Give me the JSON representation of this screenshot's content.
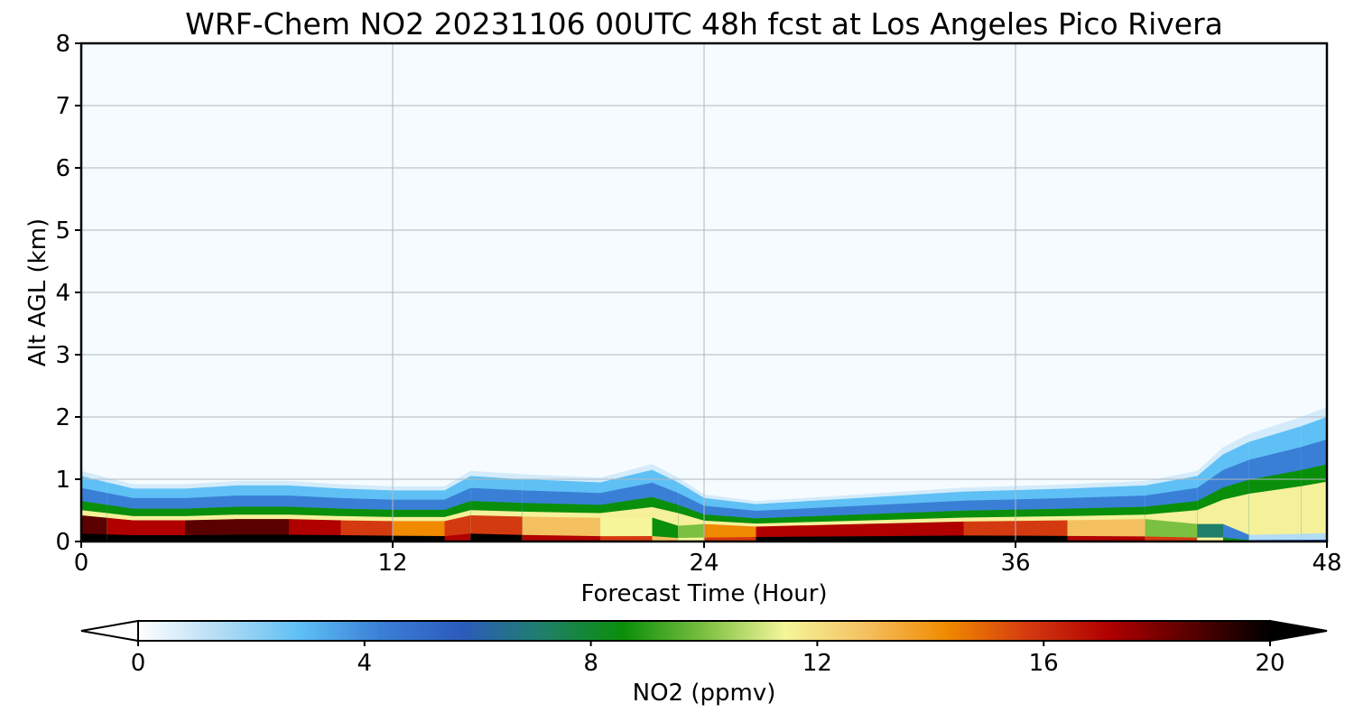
{
  "chart_data": {
    "type": "heatmap",
    "title": "WRF-Chem NO2  20231106 00UTC 48h fcst at Los Angeles Pico Rivera",
    "xlabel": "Forecast Time (Hour)",
    "ylabel": "Alt AGL (km)",
    "xlim": [
      0,
      48
    ],
    "ylim": [
      0,
      8
    ],
    "x_ticks": [
      "0",
      "12",
      "24",
      "36",
      "48"
    ],
    "y_ticks": [
      "0",
      "1",
      "2",
      "3",
      "4",
      "5",
      "6",
      "7",
      "8"
    ],
    "grid": true,
    "colorbar": {
      "label": "NO2  (ppmv)",
      "range": [
        0,
        20
      ],
      "ticks": [
        "0",
        "4",
        "8",
        "12",
        "16",
        "20"
      ],
      "extend": "both",
      "orientation": "horizontal",
      "colors": [
        "#ffffff",
        "#b3dcf5",
        "#5ec0f5",
        "#3a7fd6",
        "#2b5bbd",
        "#1f7f6a",
        "#0a8f0a",
        "#7bc040",
        "#f5f59a",
        "#f5c060",
        "#f08a00",
        "#d43a10",
        "#b00000",
        "#5a0000",
        "#000000"
      ]
    },
    "x": [
      0,
      1,
      2,
      4,
      6,
      8,
      10,
      12,
      14,
      15,
      17,
      20,
      22,
      23,
      24,
      26,
      30,
      34,
      38,
      41,
      43,
      44,
      45,
      47,
      48
    ],
    "profiles": [
      {
        "name": "boundary_layer_top_km",
        "values": [
          1.05,
          0.95,
          0.85,
          0.85,
          0.9,
          0.9,
          0.85,
          0.82,
          0.82,
          1.05,
          1.0,
          0.95,
          1.15,
          0.95,
          0.7,
          0.6,
          0.7,
          0.8,
          0.85,
          0.9,
          1.05,
          1.4,
          1.6,
          1.85,
          2.0
        ]
      },
      {
        "name": "surface_no2_ppmv",
        "values": [
          19,
          17,
          16,
          18,
          19,
          18,
          16,
          15,
          14,
          16,
          14,
          12,
          10,
          8,
          12,
          16,
          17,
          16,
          14,
          12,
          8,
          6,
          2,
          2,
          2
        ]
      }
    ]
  }
}
